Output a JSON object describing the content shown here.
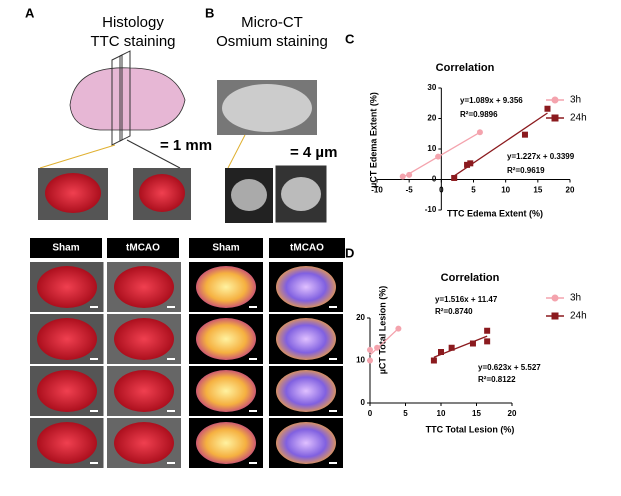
{
  "panels": {
    "a": {
      "label": "A",
      "title_lines": [
        "Histology",
        "TTC staining"
      ],
      "scale": "= 1 mm"
    },
    "b": {
      "label": "B",
      "title_lines": [
        "Micro-CT",
        "Osmium staining"
      ],
      "scale": "= 4 µm"
    }
  },
  "grid_headers": {
    "left": [
      "Sham",
      "tMCAO"
    ],
    "right": [
      "Sham",
      "tMCAO"
    ]
  },
  "chart_data": [
    {
      "type": "scatter",
      "panel_label": "C",
      "title": "Correlation",
      "x_label": "TTC Edema Extent (%)",
      "y_label": "µCT Edema Extent (%)",
      "xlim": [
        -10,
        20
      ],
      "ylim": [
        -10,
        30
      ],
      "xticks": [
        -10,
        -5,
        0,
        5,
        10,
        15,
        20
      ],
      "yticks": [
        -10,
        0,
        10,
        20,
        30
      ],
      "series": [
        {
          "name": "3h",
          "color": "#f4a3ad",
          "marker": "circle",
          "x": [
            -6,
            -5,
            -0.5,
            6
          ],
          "values": [
            1,
            1.5,
            7.5,
            15.5
          ]
        },
        {
          "name": "24h",
          "color": "#8b1a1e",
          "marker": "square",
          "x": [
            2,
            4,
            4.5,
            13,
            16.5
          ],
          "values": [
            0.5,
            4.8,
            5.3,
            14.7,
            23.2
          ]
        }
      ],
      "annotations": [
        "y=1.089x + 9.356",
        "R²=0.9896",
        "y=1.227x + 0.3399",
        "R²=0.9619"
      ]
    },
    {
      "type": "scatter",
      "panel_label": "D",
      "title": "Correlation",
      "x_label": "TTC Total Lesion (%)",
      "y_label": "µCT Total Lesion (%)",
      "xlim": [
        0,
        20
      ],
      "ylim": [
        0,
        20
      ],
      "xticks": [
        0,
        5,
        10,
        15,
        20
      ],
      "yticks": [
        0,
        10,
        20
      ],
      "series": [
        {
          "name": "3h",
          "color": "#f4a3ad",
          "marker": "circle",
          "x": [
            0,
            0,
            1,
            4
          ],
          "values": [
            10,
            12.5,
            13,
            17.5
          ]
        },
        {
          "name": "24h",
          "color": "#8b1a1e",
          "marker": "square",
          "x": [
            9,
            10,
            11.5,
            14.5,
            16.5,
            16.5
          ],
          "values": [
            10,
            12,
            13,
            14,
            14.5,
            17
          ]
        }
      ],
      "annotations": [
        "y=1.516x + 11.47",
        "R²=0.8740",
        "y=0.623x + 5.527",
        "R²=0.8122"
      ]
    }
  ]
}
